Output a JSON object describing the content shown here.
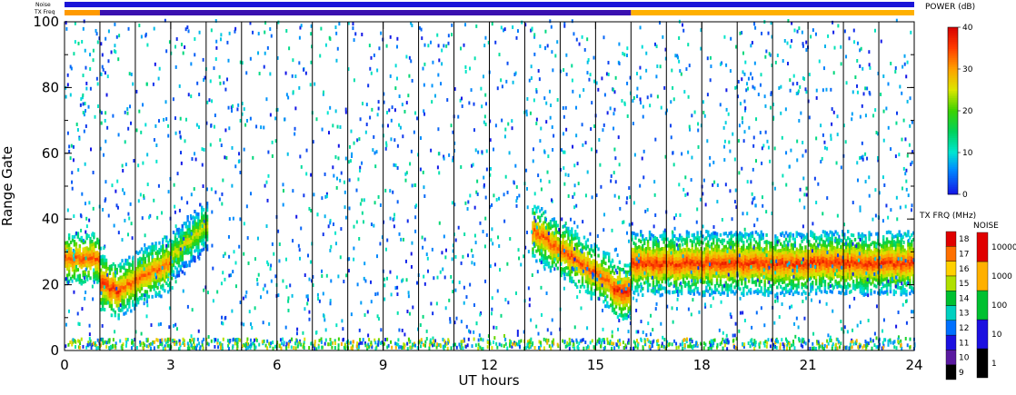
{
  "chart_data": {
    "type": "heatmap",
    "xlabel": "UT hours",
    "ylabel": "Range Gate",
    "xlim": [
      0,
      24
    ],
    "ylim": [
      0,
      100
    ],
    "xticks": [
      "0",
      "3",
      "6",
      "9",
      "12",
      "15",
      "18",
      "21",
      "24"
    ],
    "yticks": [
      "0",
      "20",
      "40",
      "60",
      "80",
      "100"
    ],
    "grid": false,
    "scan_boundaries_hours": [
      1,
      2,
      3,
      4,
      5,
      6,
      7,
      8,
      9,
      10,
      11,
      12,
      13,
      14,
      15,
      16,
      17,
      18,
      19,
      20,
      21,
      22,
      23
    ],
    "header_strips": {
      "noise_label": "Noise",
      "txfreq_label": "TX Freq",
      "noise_color": "#1a14d8",
      "txfreq_segments": [
        {
          "start": 0,
          "end": 1,
          "color": "#ff9a00"
        },
        {
          "start": 1,
          "end": 16,
          "color": "#3a10b0"
        },
        {
          "start": 16,
          "end": 24,
          "color": "#ffb000"
        }
      ]
    },
    "echo_bands": [
      {
        "start": 0,
        "end": 1,
        "gate_center": [
          28,
          27
        ],
        "width": 2,
        "power": 34
      },
      {
        "start": 1,
        "end": 1.6,
        "gate_center": [
          20,
          17
        ],
        "width": 3,
        "power": 36
      },
      {
        "start": 1.6,
        "end": 3,
        "gate_center": [
          19,
          26
        ],
        "width": 3,
        "power": 33
      },
      {
        "start": 3,
        "end": 4,
        "gate_center": [
          28,
          38
        ],
        "width": 3,
        "power": 26
      },
      {
        "start": 13.2,
        "end": 15.5,
        "gate_center": [
          36,
          19
        ],
        "width": 3,
        "power": 34
      },
      {
        "start": 15.5,
        "end": 16,
        "gate_center": [
          18,
          17
        ],
        "width": 3,
        "power": 37
      },
      {
        "start": 16,
        "end": 24,
        "gate_center": [
          26,
          26
        ],
        "width": 4,
        "power": 36
      }
    ],
    "colorbars": [
      {
        "title": "POWER (dB)",
        "min": 0,
        "max": 40,
        "ticks": [
          "0",
          "10",
          "20",
          "30",
          "40"
        ]
      },
      {
        "title": "TX FRQ (MHz)",
        "ticks": [
          "9",
          "10",
          "11",
          "12",
          "13",
          "14",
          "15",
          "16",
          "17",
          "18"
        ]
      },
      {
        "title": "NOISE",
        "ticks": [
          "1",
          "10",
          "100",
          "1000",
          "10000"
        ]
      }
    ]
  }
}
